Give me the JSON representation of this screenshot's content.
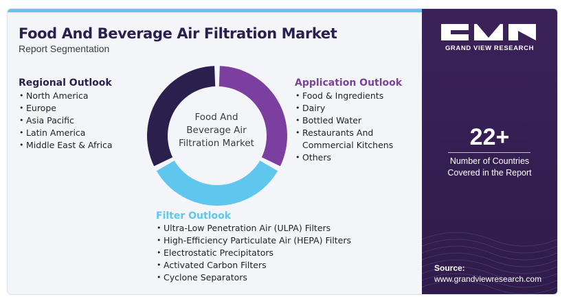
{
  "header": {
    "title": "Food And Beverage Air Filtration Market",
    "subtitle": "Report Segmentation"
  },
  "regional": {
    "title": "Regional Outlook",
    "items": [
      "North America",
      "Europe",
      "Asia Pacific",
      "Latin America",
      "Middle East & Africa"
    ]
  },
  "application": {
    "title": "Application Outlook",
    "items": [
      "Food & Ingredients",
      "Dairy",
      "Bottled Water",
      "Restaurants And Commercial Kitchens",
      "Others"
    ]
  },
  "filter": {
    "title": "Filter Outlook",
    "items": [
      "Ultra-Low Penetration Air (ULPA) Filters",
      "High-Efficiency Particulate Air (HEPA) Filters",
      "Electrostatic Precipitators",
      "Activated Carbon Filters",
      "Cyclone Separators"
    ]
  },
  "donut": {
    "center_label": "Food And Beverage Air Filtration Market",
    "colors": {
      "application": "#7b3fa0",
      "filter": "#5fc6ee",
      "regional": "#2b1f4e"
    }
  },
  "brand": {
    "logo_icon": "gvr-logo-icon",
    "name": "GRAND VIEW RESEARCH"
  },
  "stat": {
    "number": "22+",
    "label_line1": "Number of Countries",
    "label_line2": "Covered in the Report"
  },
  "source": {
    "label": "Source:",
    "url": "www.grandviewresearch.com"
  },
  "colors": {
    "accent": "#5fc6ee",
    "dark_purple": "#2b1f4e",
    "purple": "#7b3fa0",
    "sidebar": "#3a2259"
  }
}
